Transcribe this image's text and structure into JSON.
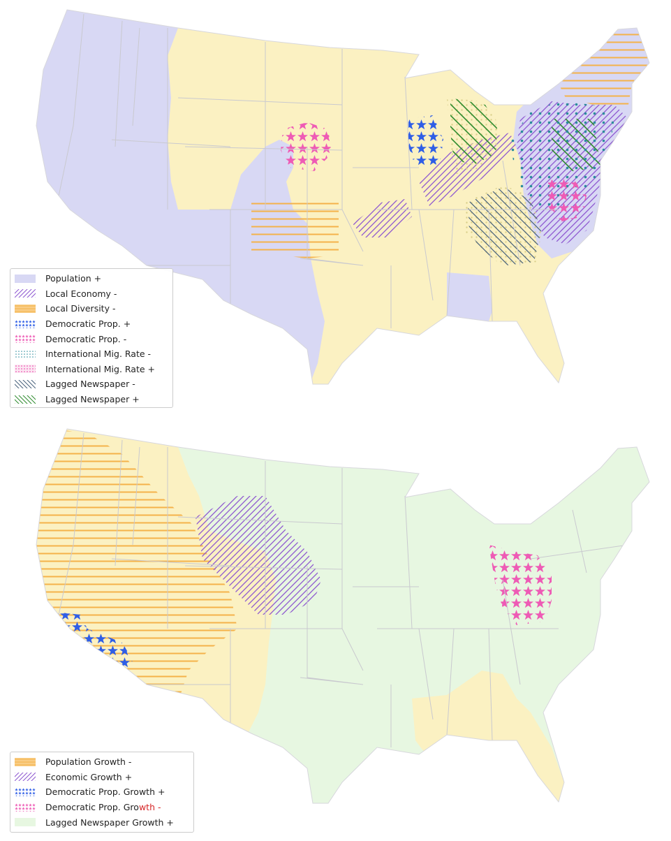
{
  "colors": {
    "lavender": "#d8d8f4",
    "yellow": "#fbf1c2",
    "mint": "#e7f7e1",
    "orange": "#f4b24a",
    "purple": "#8c55d0",
    "blue": "#2f5ee6",
    "pink": "#ee5bb5",
    "teal": "#2b8c9c",
    "navy": "#46607a",
    "green": "#2e8b2e"
  },
  "top_map": {
    "legend": [
      {
        "label": "Population +",
        "pattern": "lavender-fill"
      },
      {
        "label": "Local Economy -",
        "pattern": "purple-hatch"
      },
      {
        "label": "Local Diversity -",
        "pattern": "orange-fill"
      },
      {
        "label": "Democratic Prop. +",
        "pattern": "blue-stars"
      },
      {
        "label": "Democratic Prop. -",
        "pattern": "pink-stars"
      },
      {
        "label": "International Mig. Rate -",
        "pattern": "teal-dots"
      },
      {
        "label": "International Mig. Rate +",
        "pattern": "pink-dots"
      },
      {
        "label": "Lagged Newspaper -",
        "pattern": "navy-hatch"
      },
      {
        "label": "Lagged Newspaper +",
        "pattern": "green-hatch"
      }
    ]
  },
  "bottom_map": {
    "legend": [
      {
        "label": "Population Growth -",
        "pattern": "orange-fill"
      },
      {
        "label": "Economic Growth +",
        "pattern": "purple-hatch"
      },
      {
        "label": "Democratic Prop. Growth +",
        "pattern": "blue-stars"
      },
      {
        "label": "Democratic Prop. Gro",
        "label_highlight": "wth -",
        "pattern": "pink-stars"
      },
      {
        "label": "Lagged Newspaper Growth +",
        "pattern": "mint-fill"
      }
    ]
  }
}
